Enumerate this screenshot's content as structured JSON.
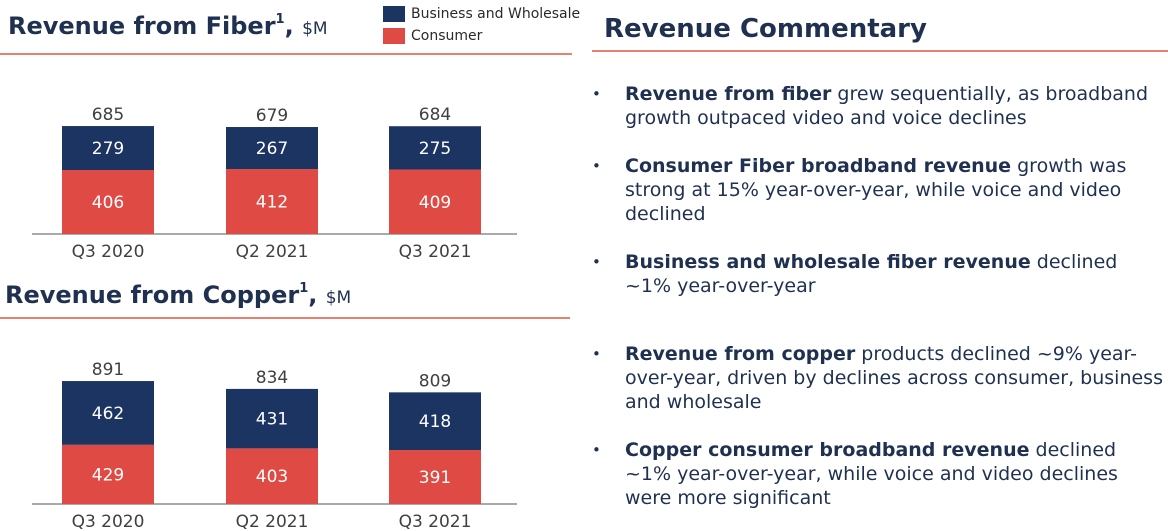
{
  "colors": {
    "business": "#1c3461",
    "consumer": "#e04a44",
    "title": "#1f3050",
    "rule": "#e8826f"
  },
  "legend": {
    "business": "Business and Wholesale",
    "consumer": "Consumer"
  },
  "fiber_title": {
    "main": "Revenue from Fiber",
    "sup": "1",
    "comma": ",",
    "unit": "$M"
  },
  "copper_title": {
    "main": "Revenue from Copper",
    "sup": "1",
    "comma": ",",
    "unit": "$M"
  },
  "commentary": {
    "title": "Revenue Commentary",
    "bullet_symbol": "•",
    "items": [
      {
        "bold": "Revenue from fiber",
        "text": " grew sequentially, as broadband growth outpaced video and voice declines"
      },
      {
        "bold": "Consumer Fiber broadband revenue",
        "text": " growth was strong at 15% year-over-year, while voice and video declined"
      },
      {
        "bold": "Business and wholesale fiber revenue",
        "text": " declined ~1% year-over-year"
      },
      {
        "bold": "Revenue from copper",
        "text": " products declined ~9% year-over-year, driven by declines across consumer, business and wholesale"
      },
      {
        "bold": "Copper consumer broadband revenue",
        "text": " declined ~1% year-over-year, while voice and video declines were more significant"
      }
    ]
  },
  "chart_data": [
    {
      "type": "bar",
      "stacked": true,
      "title": "Revenue from Fiber1, $M",
      "categories": [
        "Q3 2020",
        "Q2 2021",
        "Q3 2021"
      ],
      "series": [
        {
          "name": "Consumer",
          "values": [
            406,
            412,
            409
          ]
        },
        {
          "name": "Business and Wholesale",
          "values": [
            279,
            267,
            275
          ]
        }
      ],
      "totals": [
        685,
        679,
        684
      ],
      "ylim": [
        0,
        700
      ],
      "grid": false,
      "legend": "top"
    },
    {
      "type": "bar",
      "stacked": true,
      "title": "Revenue from Copper1, $M",
      "categories": [
        "Q3 2020",
        "Q2 2021",
        "Q3 2021"
      ],
      "series": [
        {
          "name": "Consumer",
          "values": [
            429,
            403,
            391
          ]
        },
        {
          "name": "Business and Wholesale",
          "values": [
            462,
            431,
            418
          ]
        }
      ],
      "totals": [
        891,
        834,
        809
      ],
      "ylim": [
        0,
        900
      ],
      "grid": false,
      "legend": "top"
    }
  ]
}
